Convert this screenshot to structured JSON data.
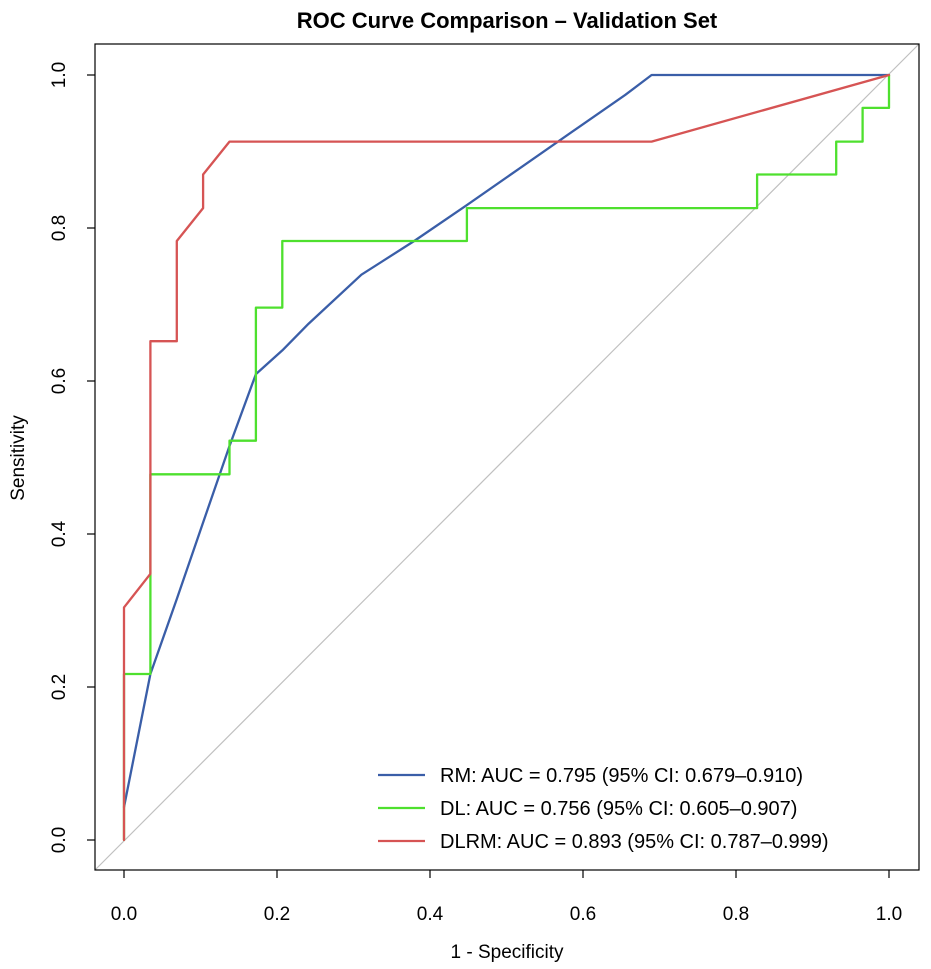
{
  "chart_data": {
    "type": "line",
    "title": "ROC Curve Comparison – Validation Set",
    "xlabel": "1 - Specificity",
    "ylabel": "Sensitivity",
    "xlim": [
      0.0,
      1.0
    ],
    "ylim": [
      0.0,
      1.0
    ],
    "x_ticks": [
      "0.0",
      "0.2",
      "0.4",
      "0.6",
      "0.8",
      "1.0"
    ],
    "y_ticks": [
      "0.0",
      "0.2",
      "0.4",
      "0.6",
      "0.8",
      "1.0"
    ],
    "grid": false,
    "legend_position": "bottom-right",
    "reference_line": {
      "x": [
        0,
        1
      ],
      "y": [
        0,
        1
      ],
      "color": "#c0c0c0"
    },
    "series": [
      {
        "name": "RM",
        "legend": "RM: AUC = 0.795 (95% CI: 0.679–0.910)",
        "color": "#3a5ea8",
        "x": [
          0.0,
          0.0345,
          0.069,
          0.1034,
          0.1379,
          0.1724,
          0.2069,
          0.2414,
          0.3103,
          0.3793,
          0.4483,
          0.5172,
          0.5862,
          0.6552,
          0.6897,
          1.0
        ],
        "y": [
          0.043,
          0.217,
          0.315,
          0.415,
          0.515,
          0.609,
          0.64,
          0.675,
          0.739,
          0.783,
          0.83,
          0.878,
          0.926,
          0.974,
          1.0,
          1.0
        ]
      },
      {
        "name": "DL",
        "legend": "DL: AUC = 0.756 (95% CI: 0.605–0.907)",
        "color": "#4ee02e",
        "x": [
          0.0,
          0.0,
          0.0345,
          0.0345,
          0.1379,
          0.1379,
          0.1724,
          0.1724,
          0.2069,
          0.2069,
          0.4483,
          0.4483,
          0.8276,
          0.8276,
          0.931,
          0.931,
          0.9655,
          0.9655,
          1.0,
          1.0
        ],
        "y": [
          0.0,
          0.217,
          0.217,
          0.478,
          0.478,
          0.522,
          0.522,
          0.696,
          0.696,
          0.783,
          0.783,
          0.826,
          0.826,
          0.87,
          0.87,
          0.913,
          0.913,
          0.957,
          0.957,
          1.0
        ]
      },
      {
        "name": "DLRM",
        "legend": "DLRM: AUC = 0.893 (95% CI: 0.787–0.999)",
        "color": "#d65454",
        "x": [
          0.0,
          0.0,
          0.0345,
          0.0345,
          0.069,
          0.069,
          0.1034,
          0.1034,
          0.1379,
          0.6897,
          1.0
        ],
        "y": [
          0.0,
          0.304,
          0.348,
          0.652,
          0.652,
          0.783,
          0.826,
          0.87,
          0.913,
          0.913,
          1.0
        ]
      }
    ]
  }
}
